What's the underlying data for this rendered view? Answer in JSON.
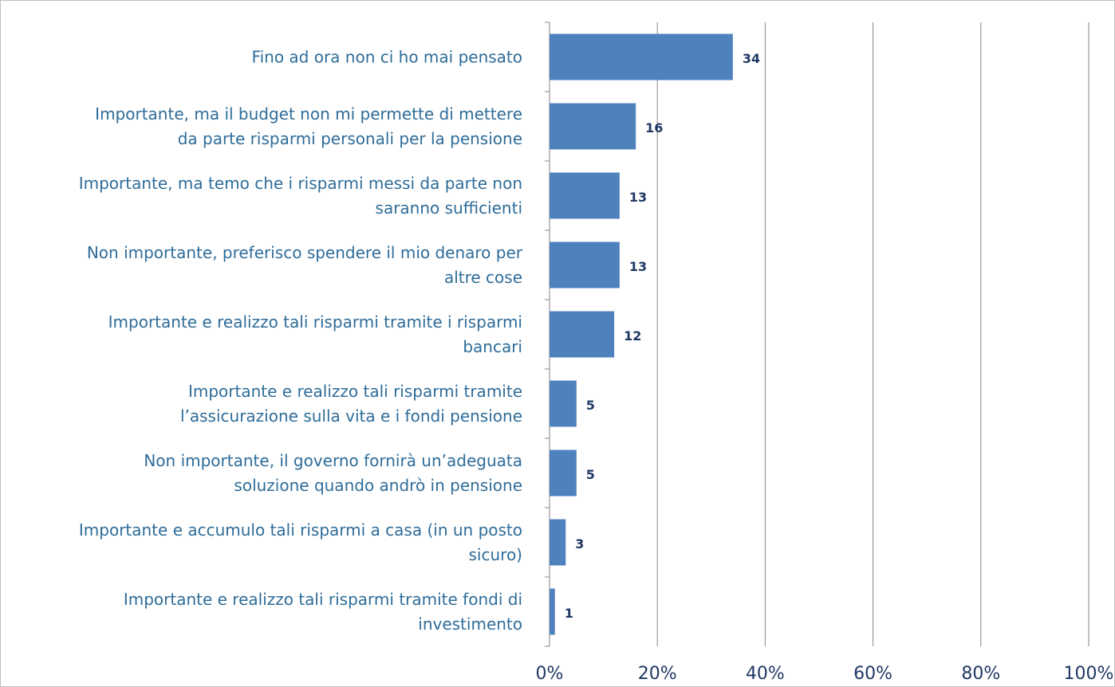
{
  "chart_data": {
    "type": "bar",
    "orientation": "horizontal",
    "categories": [
      "Fino ad ora non ci ho mai pensato",
      "Importante, ma il budget non mi permette di mettere\nda parte risparmi personali per la pensione",
      "Importante, ma temo che i risparmi messi da parte non\nsaranno sufficienti",
      "Non importante, preferisco spendere il mio denaro per\naltre cose",
      "Importante e realizzo tali risparmi tramite i risparmi\nbancari",
      "Importante e realizzo tali risparmi tramite\nl’assicurazione sulla vita e i fondi pensione",
      "Non importante, il governo fornirà un’adeguata\nsoluzione quando andrò in pensione",
      "Importante e accumulo tali risparmi a casa (in un posto\nsicuro)",
      "Importante e realizzo tali risparmi tramite fondi di\ninvestimento"
    ],
    "values": [
      34,
      16,
      13,
      13,
      12,
      5,
      5,
      3,
      1
    ],
    "color": "#4f81bd",
    "xlim": [
      0,
      100
    ],
    "xticks": [
      {
        "value": 0,
        "label": "0%"
      },
      {
        "value": 20,
        "label": "20%"
      },
      {
        "value": 40,
        "label": "40%"
      },
      {
        "value": 60,
        "label": "60%"
      },
      {
        "value": 80,
        "label": "80%"
      },
      {
        "value": 100,
        "label": "100%"
      }
    ],
    "grid": true
  }
}
